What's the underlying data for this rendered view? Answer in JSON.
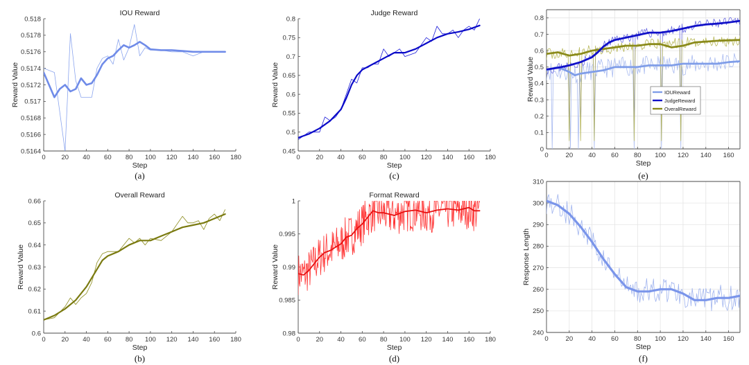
{
  "chart_data": [
    {
      "id": "a",
      "type": "line",
      "title": "IOU Reward",
      "caption": "(a)",
      "xlabel": "Step",
      "ylabel": "Reward Value",
      "xlim": [
        0,
        180
      ],
      "ylim": [
        0.5164,
        0.518
      ],
      "xticks": [
        0,
        20,
        40,
        60,
        80,
        100,
        120,
        140,
        160,
        180
      ],
      "yticks": [
        0.5164,
        0.5166,
        0.5168,
        0.517,
        0.5172,
        0.5174,
        0.5176,
        0.5178,
        0.518
      ],
      "ytick_labels": [
        "0.5164",
        "0.5166",
        "0.5168",
        "0.517",
        "0.5172",
        "0.5174",
        "0.5176",
        "0.5178",
        "0.518"
      ],
      "series": [
        {
          "name": "raw",
          "color": "#8aa4ee",
          "width": 0.8,
          "x": [
            0,
            10,
            20,
            25,
            30,
            35,
            40,
            45,
            50,
            55,
            60,
            65,
            70,
            75,
            80,
            85,
            90,
            95,
            100,
            110,
            120,
            130,
            140,
            150,
            160,
            170
          ],
          "y": [
            0.5174,
            0.51735,
            0.5164,
            0.51782,
            0.51725,
            0.51705,
            0.51705,
            0.51705,
            0.5174,
            0.51752,
            0.51755,
            0.51745,
            0.51775,
            0.5175,
            0.51765,
            0.51793,
            0.51755,
            0.51765,
            0.51762,
            0.51762,
            0.5176,
            0.5176,
            0.51755,
            0.5176,
            0.5176,
            0.5176
          ]
        },
        {
          "name": "smoothed",
          "color": "#6f8be8",
          "width": 2.6,
          "x": [
            0,
            5,
            10,
            15,
            20,
            25,
            30,
            35,
            40,
            45,
            50,
            55,
            60,
            65,
            70,
            75,
            80,
            85,
            90,
            95,
            100,
            110,
            120,
            130,
            140,
            150,
            160,
            170
          ],
          "y": [
            0.51735,
            0.5172,
            0.51705,
            0.51715,
            0.5172,
            0.51712,
            0.51715,
            0.51728,
            0.5172,
            0.51722,
            0.51732,
            0.51745,
            0.51752,
            0.51755,
            0.51762,
            0.51768,
            0.51765,
            0.51768,
            0.51772,
            0.51768,
            0.51763,
            0.51762,
            0.51762,
            0.51761,
            0.5176,
            0.5176,
            0.5176,
            0.5176
          ]
        }
      ]
    },
    {
      "id": "c",
      "type": "line",
      "title": "Judge Reward",
      "caption": "(c)",
      "xlabel": "Step",
      "ylabel": "Reward Value",
      "xlim": [
        0,
        180
      ],
      "ylim": [
        0.45,
        0.8
      ],
      "xticks": [
        0,
        20,
        40,
        60,
        80,
        100,
        120,
        140,
        160,
        180
      ],
      "yticks": [
        0.45,
        0.5,
        0.55,
        0.6,
        0.65,
        0.7,
        0.75,
        0.8
      ],
      "ytick_labels": [
        "0.45",
        "0.5",
        "0.55",
        "0.6",
        "0.65",
        "0.7",
        "0.75",
        "0.8"
      ],
      "series": [
        {
          "name": "raw",
          "color": "#1a1ad8",
          "width": 0.8,
          "x": [
            0,
            10,
            20,
            25,
            30,
            35,
            40,
            45,
            50,
            55,
            60,
            65,
            70,
            75,
            80,
            85,
            90,
            95,
            100,
            110,
            120,
            125,
            130,
            135,
            140,
            145,
            150,
            155,
            160,
            165,
            170
          ],
          "y": [
            0.48,
            0.5,
            0.5,
            0.54,
            0.53,
            0.54,
            0.56,
            0.6,
            0.64,
            0.63,
            0.67,
            0.67,
            0.68,
            0.68,
            0.72,
            0.7,
            0.71,
            0.72,
            0.7,
            0.71,
            0.75,
            0.74,
            0.78,
            0.76,
            0.76,
            0.77,
            0.75,
            0.77,
            0.78,
            0.77,
            0.8
          ]
        },
        {
          "name": "smoothed",
          "color": "#0a0ac8",
          "width": 2.2,
          "x": [
            0,
            10,
            20,
            30,
            40,
            45,
            50,
            55,
            60,
            70,
            80,
            90,
            100,
            110,
            120,
            130,
            140,
            150,
            160,
            170
          ],
          "y": [
            0.485,
            0.495,
            0.51,
            0.53,
            0.56,
            0.59,
            0.625,
            0.65,
            0.665,
            0.68,
            0.695,
            0.71,
            0.71,
            0.72,
            0.735,
            0.75,
            0.76,
            0.765,
            0.772,
            0.782
          ]
        }
      ]
    },
    {
      "id": "e",
      "type": "line",
      "title": "",
      "caption": "(e)",
      "xlabel": "Step",
      "ylabel": "Reward Value",
      "xlim": [
        0,
        170
      ],
      "ylim": [
        0,
        0.85
      ],
      "xticks": [
        0,
        20,
        40,
        60,
        80,
        100,
        120,
        140,
        160
      ],
      "yticks": [
        0,
        0.1,
        0.2,
        0.3,
        0.4,
        0.5,
        0.6,
        0.7,
        0.8
      ],
      "ytick_labels": [
        "0",
        "0.1",
        "0.2",
        "0.3",
        "0.4",
        "0.5",
        "0.6",
        "0.7",
        "0.8"
      ],
      "grid": true,
      "legend": "center-right",
      "series": [
        {
          "name": "IOUReward",
          "color": "#7f9de8",
          "width": 2.6
        },
        {
          "name": "JudgeReward",
          "color": "#1010c8",
          "width": 2.6
        },
        {
          "name": "OveralReward",
          "color": "#8a8a1a",
          "width": 2.6
        }
      ]
    },
    {
      "id": "b",
      "type": "line",
      "title": "Overall Reward",
      "caption": "(b)",
      "xlabel": "Step",
      "ylabel": "Reward Value",
      "xlim": [
        0,
        180
      ],
      "ylim": [
        0.6,
        0.66
      ],
      "xticks": [
        0,
        20,
        40,
        60,
        80,
        100,
        120,
        140,
        160,
        180
      ],
      "yticks": [
        0.6,
        0.61,
        0.62,
        0.63,
        0.64,
        0.65,
        0.66
      ],
      "ytick_labels": [
        "0.6",
        "0.61",
        "0.62",
        "0.63",
        "0.64",
        "0.65",
        "0.66"
      ],
      "series": [
        {
          "name": "raw",
          "color": "#8a8a1a",
          "width": 0.8,
          "x": [
            0,
            10,
            20,
            25,
            30,
            35,
            40,
            45,
            50,
            55,
            60,
            70,
            80,
            85,
            90,
            95,
            100,
            110,
            120,
            130,
            135,
            140,
            145,
            150,
            155,
            160,
            165,
            170
          ],
          "y": [
            0.606,
            0.607,
            0.612,
            0.616,
            0.613,
            0.616,
            0.618,
            0.623,
            0.632,
            0.636,
            0.637,
            0.637,
            0.643,
            0.641,
            0.643,
            0.64,
            0.643,
            0.642,
            0.646,
            0.653,
            0.65,
            0.65,
            0.651,
            0.647,
            0.652,
            0.654,
            0.651,
            0.656
          ]
        },
        {
          "name": "smoothed",
          "color": "#7a7a10",
          "width": 2.2,
          "x": [
            0,
            10,
            20,
            30,
            40,
            50,
            55,
            60,
            70,
            80,
            90,
            100,
            110,
            120,
            130,
            140,
            150,
            160,
            170
          ],
          "y": [
            0.606,
            0.608,
            0.611,
            0.615,
            0.621,
            0.629,
            0.633,
            0.635,
            0.637,
            0.64,
            0.642,
            0.642,
            0.644,
            0.646,
            0.648,
            0.649,
            0.65,
            0.652,
            0.654
          ]
        }
      ]
    },
    {
      "id": "d",
      "type": "line",
      "title": "Format Reward",
      "caption": "(d)",
      "xlabel": "Step",
      "ylabel": "Reward Value",
      "xlim": [
        0,
        180
      ],
      "ylim": [
        0.98,
        1.0
      ],
      "xticks": [
        0,
        20,
        40,
        60,
        80,
        100,
        120,
        140,
        160,
        180
      ],
      "yticks": [
        0.98,
        0.985,
        0.99,
        0.995,
        1.0
      ],
      "ytick_labels": [
        "0.98",
        "0.985",
        "0.99",
        "0.995",
        "1"
      ],
      "series": [
        {
          "name": "raw",
          "color": "#ff3030",
          "width": 0.8
        },
        {
          "name": "smoothed",
          "color": "#e81010",
          "width": 1.8,
          "x": [
            0,
            5,
            10,
            15,
            20,
            25,
            30,
            35,
            40,
            45,
            50,
            55,
            60,
            65,
            70,
            75,
            80,
            90,
            100,
            110,
            120,
            130,
            140,
            150,
            160,
            165,
            170
          ],
          "y": [
            0.989,
            0.9888,
            0.9895,
            0.9905,
            0.9915,
            0.9922,
            0.9925,
            0.993,
            0.9935,
            0.9945,
            0.9948,
            0.9958,
            0.9965,
            0.9975,
            0.9985,
            0.9982,
            0.9982,
            0.9978,
            0.9984,
            0.9986,
            0.9982,
            0.9986,
            0.9988,
            0.9986,
            0.999,
            0.9985,
            0.9985
          ]
        }
      ]
    },
    {
      "id": "f",
      "type": "line",
      "title": "",
      "caption": "(f)",
      "xlabel": "Step",
      "ylabel": "Response Length",
      "xlim": [
        0,
        170
      ],
      "ylim": [
        240,
        310
      ],
      "xticks": [
        0,
        20,
        40,
        60,
        80,
        100,
        120,
        140,
        160
      ],
      "yticks": [
        240,
        250,
        260,
        270,
        280,
        290,
        300,
        310
      ],
      "ytick_labels": [
        "240",
        "250",
        "260",
        "270",
        "280",
        "290",
        "300",
        "310"
      ],
      "grid": true,
      "series": [
        {
          "name": "raw",
          "color": "#9fb3ee",
          "width": 0.8
        },
        {
          "name": "smoothed",
          "color": "#7a95ea",
          "width": 3.2,
          "x": [
            0,
            10,
            20,
            30,
            40,
            50,
            60,
            70,
            80,
            90,
            100,
            110,
            120,
            130,
            140,
            150,
            160,
            170
          ],
          "y": [
            301,
            299,
            295,
            289,
            282,
            274,
            267,
            261,
            259,
            259,
            260,
            260,
            258,
            255,
            255,
            256,
            256,
            257
          ]
        }
      ]
    }
  ]
}
